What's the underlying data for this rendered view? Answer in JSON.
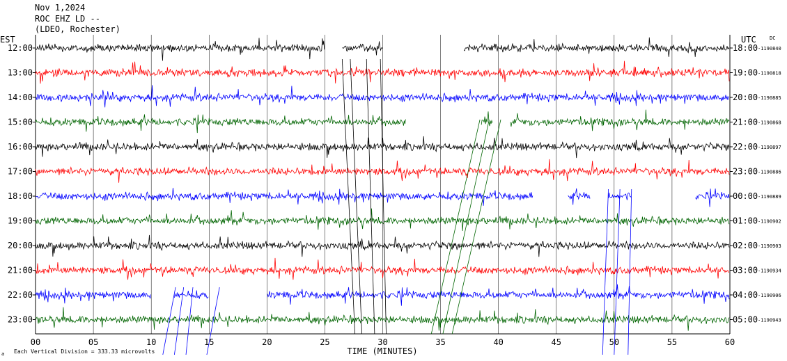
{
  "header": {
    "line1": "Nov 1,2024",
    "line2": "ROC EHZ LD --",
    "line3": "(LDEO, Rochester)"
  },
  "left_axis_label": "EST",
  "right_axis_label": "UTC",
  "dc_label": "DC",
  "footer": {
    "scale_note": "Each Vertical Division = 333.33 microvolts",
    "mark": "a"
  },
  "chart_data": {
    "type": "line",
    "title": "ROC EHZ LD --",
    "xlabel": "TIME (MINUTES)",
    "ylabel": "",
    "xlim": [
      0,
      60
    ],
    "x_ticks": [
      "00",
      "05",
      "10",
      "15",
      "20",
      "25",
      "30",
      "35",
      "40",
      "45",
      "50",
      "55",
      "60"
    ],
    "grid": true,
    "trace_colors": [
      "#000000",
      "#ff0000",
      "#0000ff",
      "#006400"
    ],
    "traces": [
      {
        "est": "12:00",
        "utc": "18:00",
        "dc": "-1190840",
        "gaps": [
          [
            25,
            26.5
          ],
          [
            30,
            37
          ]
        ]
      },
      {
        "est": "13:00",
        "utc": "19:00",
        "dc": "-1190818",
        "gaps": []
      },
      {
        "est": "14:00",
        "utc": "20:00",
        "dc": "-1190885",
        "gaps": []
      },
      {
        "est": "15:00",
        "utc": "21:00",
        "dc": "-1190868",
        "gaps": [
          [
            32,
            38.5
          ],
          [
            39.5,
            41
          ]
        ]
      },
      {
        "est": "16:00",
        "utc": "22:00",
        "dc": "-1190897",
        "gaps": []
      },
      {
        "est": "17:00",
        "utc": "23:00",
        "dc": "-1190886",
        "gaps": []
      },
      {
        "est": "18:00",
        "utc": "00:00",
        "dc": "-1190889",
        "gaps": [
          [
            43,
            46
          ],
          [
            48,
            49.5
          ],
          [
            51.5,
            57
          ]
        ]
      },
      {
        "est": "19:00",
        "utc": "01:00",
        "dc": "-1190902",
        "gaps": []
      },
      {
        "est": "20:00",
        "utc": "02:00",
        "dc": "-1190903",
        "gaps": []
      },
      {
        "est": "21:00",
        "utc": "03:00",
        "dc": "-1190934",
        "gaps": []
      },
      {
        "est": "22:00",
        "utc": "04:00",
        "dc": "-1190906",
        "gaps": [
          [
            10,
            12
          ],
          [
            15,
            20
          ]
        ]
      },
      {
        "est": "23:00",
        "utc": "05:00",
        "dc": "-1190943",
        "gaps": []
      }
    ]
  }
}
